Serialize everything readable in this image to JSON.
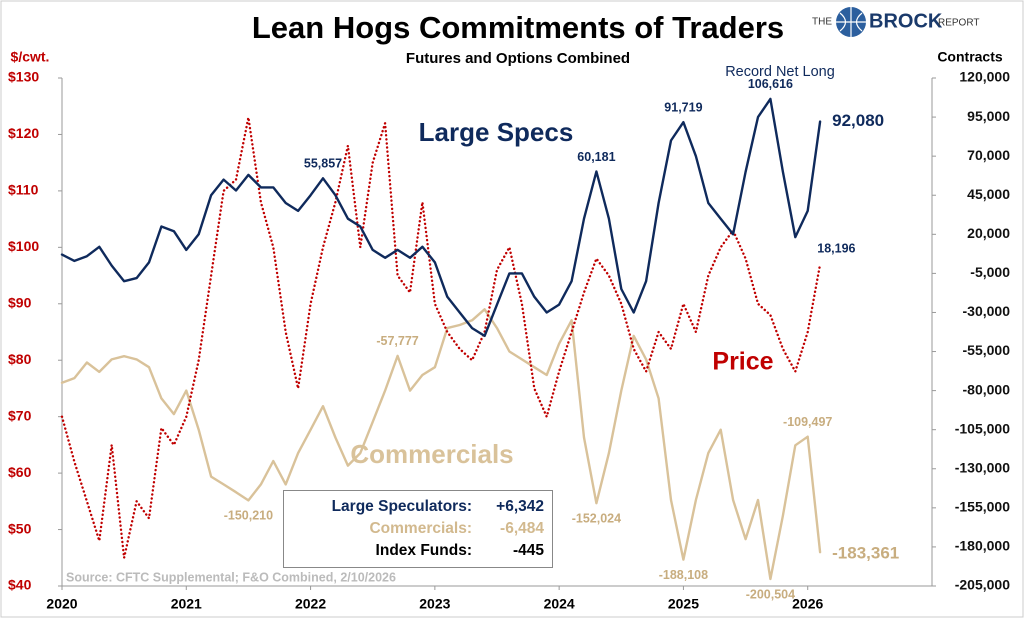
{
  "chart_data": {
    "type": "line",
    "title": "Lean Hogs Commitments of Traders",
    "subtitle": "Futures and Options Combined",
    "ylabel": "$/cwt.",
    "y2label": "Contracts",
    "source": "Source: CFTC Supplemental; F&O Combined, 2/10/2026",
    "annotations": [
      "Record Net Long"
    ],
    "x": [
      2020,
      2020.1,
      2020.2,
      2020.3,
      2020.4,
      2020.5,
      2020.6,
      2020.7,
      2020.8,
      2020.9,
      2021,
      2021.1,
      2021.2,
      2021.3,
      2021.4,
      2021.5,
      2021.6,
      2021.7,
      2021.8,
      2021.9,
      2022,
      2022.1,
      2022.2,
      2022.3,
      2022.4,
      2022.5,
      2022.6,
      2022.7,
      2022.8,
      2022.9,
      2023,
      2023.1,
      2023.2,
      2023.3,
      2023.4,
      2023.5,
      2023.6,
      2023.7,
      2023.8,
      2023.9,
      2024,
      2024.1,
      2024.2,
      2024.3,
      2024.4,
      2024.5,
      2024.6,
      2024.7,
      2024.8,
      2024.9,
      2025,
      2025.1,
      2025.2,
      2025.3,
      2025.4,
      2025.5,
      2025.6,
      2025.7,
      2025.8,
      2025.9,
      2026,
      2026.1
    ],
    "xlim": [
      2020,
      2027
    ],
    "xticks": [
      2020,
      2021,
      2022,
      2023,
      2024,
      2025,
      2026
    ],
    "ylim": [
      40,
      130
    ],
    "yticks": [
      {
        "value": 40,
        "label": "$40"
      },
      {
        "value": 50,
        "label": "$50"
      },
      {
        "value": 60,
        "label": "$60"
      },
      {
        "value": 70,
        "label": "$70"
      },
      {
        "value": 80,
        "label": "$80"
      },
      {
        "value": 90,
        "label": "$90"
      },
      {
        "value": 100,
        "label": "$100"
      },
      {
        "value": 110,
        "label": "$110"
      },
      {
        "value": 120,
        "label": "$120"
      },
      {
        "value": 130,
        "label": "$130"
      }
    ],
    "y2lim": [
      -205000,
      120000
    ],
    "y2ticks": [
      {
        "value": -205000,
        "label": "-205,000"
      },
      {
        "value": -180000,
        "label": "-180,000"
      },
      {
        "value": -155000,
        "label": "-155,000"
      },
      {
        "value": -130000,
        "label": "-130,000"
      },
      {
        "value": -105000,
        "label": "-105,000"
      },
      {
        "value": -80000,
        "label": "-80,000"
      },
      {
        "value": -55000,
        "label": "-55,000"
      },
      {
        "value": -30000,
        "label": "-30,000"
      },
      {
        "value": -5000,
        "label": "-5,000"
      },
      {
        "value": 20000,
        "label": "20,000"
      },
      {
        "value": 45000,
        "label": "45,000"
      },
      {
        "value": 70000,
        "label": "70,000"
      },
      {
        "value": 95000,
        "label": "95,000"
      },
      {
        "value": 120000,
        "label": "120,000"
      }
    ],
    "series": [
      {
        "name": "Large Specs",
        "color": "#0f2a5c",
        "axis": "y2",
        "values": [
          7000,
          3000,
          6000,
          12000,
          0,
          -10000,
          -8000,
          2000,
          25000,
          22000,
          10000,
          20000,
          45000,
          55000,
          48000,
          58000,
          50000,
          50000,
          40000,
          35000,
          45000,
          55857,
          45000,
          30000,
          25000,
          10000,
          5000,
          10000,
          5000,
          12000,
          2000,
          -20000,
          -30000,
          -40000,
          -45000,
          -25000,
          -5000,
          -5000,
          -20000,
          -30000,
          -25000,
          -10000,
          30000,
          60181,
          30000,
          -15000,
          -30000,
          -10000,
          40000,
          80000,
          91719,
          70000,
          40000,
          30000,
          20000,
          60000,
          95000,
          106616,
          60000,
          18196,
          35000,
          92080
        ],
        "value_labels": [
          null,
          null,
          null,
          null,
          null,
          null,
          null,
          null,
          null,
          null,
          null,
          null,
          null,
          null,
          null,
          null,
          null,
          null,
          null,
          null,
          null,
          "55,857",
          null,
          null,
          null,
          null,
          null,
          null,
          null,
          null,
          null,
          null,
          null,
          null,
          null,
          null,
          null,
          null,
          null,
          null,
          null,
          null,
          null,
          "60,181",
          null,
          null,
          null,
          null,
          null,
          null,
          "91,719",
          null,
          null,
          null,
          null,
          null,
          null,
          "106,616",
          null,
          "18,196",
          null,
          "92,080"
        ]
      },
      {
        "name": "Commercials",
        "color": "#d9c29a",
        "axis": "y2",
        "values": [
          -75000,
          -72000,
          -62000,
          -68000,
          -60000,
          -58000,
          -60000,
          -65000,
          -85000,
          -95000,
          -80000,
          -105000,
          -135000,
          -140000,
          -145000,
          -150210,
          -140000,
          -125000,
          -140000,
          -120000,
          -105000,
          -90000,
          -110000,
          -128000,
          -120000,
          -100000,
          -80000,
          -57777,
          -80000,
          -70000,
          -65000,
          -40000,
          -38000,
          -35000,
          -28000,
          -40000,
          -55000,
          -60000,
          -65000,
          -70000,
          -50000,
          -35000,
          -110000,
          -152024,
          -120000,
          -80000,
          -45000,
          -60000,
          -85000,
          -150000,
          -188108,
          -150000,
          -120000,
          -105000,
          -150000,
          -175000,
          -150000,
          -200504,
          -160000,
          -115000,
          -109497,
          -183361
        ],
        "value_labels": [
          null,
          null,
          null,
          null,
          null,
          null,
          null,
          null,
          null,
          null,
          null,
          null,
          null,
          null,
          null,
          "-150,210",
          null,
          null,
          null,
          null,
          null,
          null,
          null,
          null,
          null,
          null,
          null,
          "-57,777",
          null,
          null,
          null,
          null,
          null,
          null,
          null,
          null,
          null,
          null,
          null,
          null,
          null,
          null,
          null,
          "-152,024",
          null,
          null,
          null,
          null,
          null,
          null,
          "-188,108",
          null,
          null,
          null,
          null,
          null,
          null,
          "-200,504",
          null,
          null,
          "-109,497",
          "-183,361"
        ]
      },
      {
        "name": "Price",
        "color": "#c00000",
        "axis": "y",
        "values": [
          70,
          62,
          55,
          48,
          65,
          45,
          55,
          52,
          68,
          65,
          70,
          80,
          95,
          110,
          112,
          123,
          108,
          100,
          85,
          75,
          90,
          100,
          108,
          118,
          100,
          115,
          122,
          95,
          92,
          108,
          90,
          85,
          82,
          80,
          85,
          96,
          100,
          90,
          75,
          70,
          78,
          85,
          92,
          98,
          95,
          90,
          82,
          78,
          85,
          82,
          90,
          85,
          95,
          100,
          103,
          98,
          90,
          88,
          82,
          78,
          85,
          97
        ]
      }
    ]
  },
  "logo": {
    "pre": "THE",
    "main": "BROCK",
    "post": "REPORT"
  },
  "summary_box": {
    "rows": [
      [
        "Large Speculators:",
        "+6,342"
      ],
      [
        "Commercials:",
        "-6,484"
      ],
      [
        "Index Funds:",
        "-445"
      ]
    ]
  }
}
